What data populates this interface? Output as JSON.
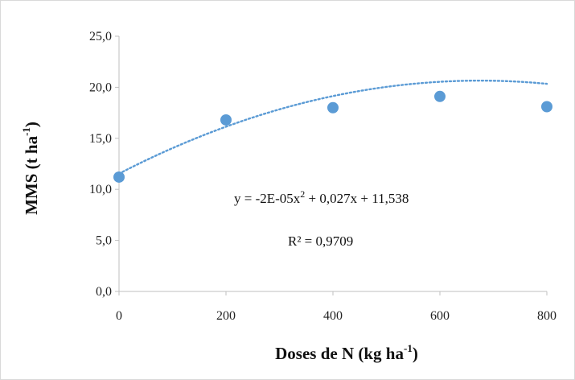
{
  "chart_data": {
    "type": "scatter",
    "title": "",
    "xlabel": "Doses de N (kg ha",
    "xlabel_sup": "-1",
    "xlabel_suffix": ")",
    "ylabel": "MMS (t ha",
    "ylabel_sup": "-1",
    "ylabel_suffix": ")",
    "x": [
      0,
      200,
      400,
      600,
      800
    ],
    "y": [
      11.2,
      16.8,
      18.0,
      19.1,
      18.1
    ],
    "xlim": [
      0,
      800
    ],
    "ylim": [
      0,
      25
    ],
    "xticks": [
      0,
      200,
      400,
      600,
      800
    ],
    "xtick_labels": [
      "0",
      "200",
      "400",
      "600",
      "800"
    ],
    "yticks": [
      0,
      5,
      10,
      15,
      20,
      25
    ],
    "ytick_labels": [
      "0,0",
      "5,0",
      "10,0",
      "15,0",
      "20,0",
      "25,0"
    ],
    "grid": false,
    "legend": "none",
    "trendline": {
      "type": "polynomial",
      "coefficients": [
        -2e-05,
        0.027,
        11.538
      ],
      "equation_prefix": "y = -2E-05x",
      "equation_sup": "2",
      "equation_suffix": " + 0,027x + 11,538",
      "r2_label": "R² = 0,9709",
      "style": "dotted"
    },
    "colors": {
      "marker": "#5b9bd5",
      "trendline": "#5b9bd5",
      "axis": "#bfbfbf"
    }
  }
}
